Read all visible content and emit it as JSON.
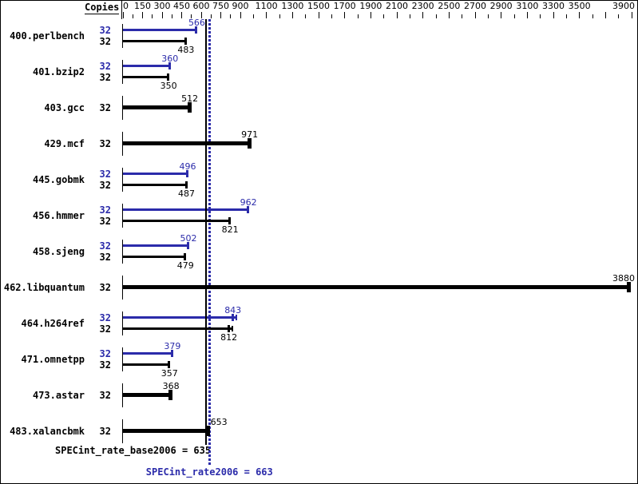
{
  "header": {
    "copies_label": "Copies"
  },
  "footer": {
    "base": "SPECint_rate_base2006 = 635",
    "peak": "SPECint_rate2006 = 663"
  },
  "colors": {
    "peak_blue": "#2b2baa",
    "base_black": "#000000",
    "background": "#ffffff"
  },
  "chart_data": {
    "type": "bar",
    "orientation": "horizontal",
    "title": "",
    "xlabel": "Copies",
    "axis": {
      "min": 0,
      "max": 3900,
      "labeled_ticks": [
        0,
        150,
        300,
        450,
        600,
        750,
        900,
        1100,
        1300,
        1500,
        1700,
        1900,
        2100,
        2300,
        2500,
        2700,
        2900,
        3100,
        3300,
        3500,
        3900
      ],
      "major_ticks": [
        0,
        150,
        300,
        450,
        600,
        750,
        900,
        1100,
        1300,
        1500,
        1700,
        1900,
        2100,
        2300,
        2500,
        2700,
        2900,
        3100,
        3300,
        3500,
        3700,
        3900
      ],
      "minor_ticks": [
        75,
        225,
        375,
        525,
        675,
        825,
        1000,
        1200,
        1400,
        1600,
        1800,
        2000,
        2200,
        2400,
        2600,
        2800,
        3000,
        3200,
        3400,
        3600,
        3800
      ],
      "grid": false
    },
    "legend": {
      "peak_color_meaning": "peak",
      "base_color_meaning": "base"
    },
    "benchmarks": [
      {
        "name": "400.perlbench",
        "copies": 32,
        "peak": 566,
        "base": 483
      },
      {
        "name": "401.bzip2",
        "copies": 32,
        "peak": 360,
        "base": 350
      },
      {
        "name": "403.gcc",
        "copies": 32,
        "base": 512
      },
      {
        "name": "429.mcf",
        "copies": 32,
        "base": 971
      },
      {
        "name": "445.gobmk",
        "copies": 32,
        "peak": 496,
        "base": 487
      },
      {
        "name": "456.hmmer",
        "copies": 32,
        "peak": 962,
        "base": 821
      },
      {
        "name": "458.sjeng",
        "copies": 32,
        "peak": 502,
        "base": 479
      },
      {
        "name": "462.libquantum",
        "copies": 32,
        "base": 3880,
        "label_pos": "right-edge"
      },
      {
        "name": "464.h264ref",
        "copies": 32,
        "peak": 843,
        "base": 812,
        "runs_spread": true
      },
      {
        "name": "471.omnetpp",
        "copies": 32,
        "peak": 379,
        "base": 357
      },
      {
        "name": "473.astar",
        "copies": 32,
        "base": 368
      },
      {
        "name": "483.xalancbmk",
        "copies": 32,
        "base": 653,
        "label_pos": "right-of-bar"
      }
    ],
    "reference_lines": [
      {
        "name": "SPECint_rate_base2006",
        "value": 635,
        "style": "solid",
        "color": "#000000"
      },
      {
        "name": "SPECint_rate2006",
        "value": 663,
        "style": "dotted",
        "color": "#2b2baa"
      }
    ],
    "base_mean": 635,
    "peak_mean": 663
  }
}
